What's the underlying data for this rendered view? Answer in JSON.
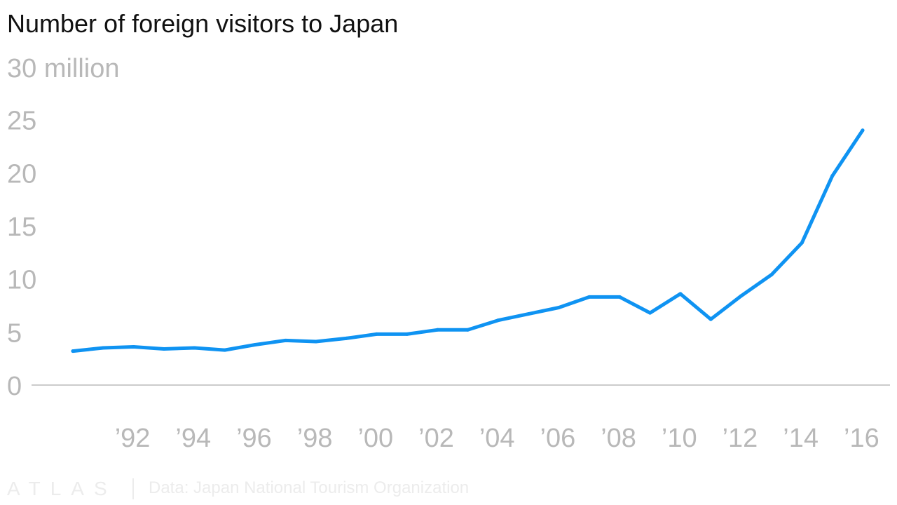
{
  "chart_data": {
    "type": "line",
    "title": "Number of foreign visitors to Japan",
    "y_unit_label": "30 million",
    "yticks": [
      0,
      5,
      10,
      15,
      20,
      25
    ],
    "ylim": [
      0,
      30
    ],
    "xlim": [
      1990,
      2016
    ],
    "xticks": [
      {
        "value": 1992,
        "label": "’92"
      },
      {
        "value": 1994,
        "label": "’94"
      },
      {
        "value": 1996,
        "label": "’96"
      },
      {
        "value": 1998,
        "label": "’98"
      },
      {
        "value": 2000,
        "label": "’00"
      },
      {
        "value": 2002,
        "label": "’02"
      },
      {
        "value": 2004,
        "label": "’04"
      },
      {
        "value": 2006,
        "label": "’06"
      },
      {
        "value": 2008,
        "label": "’08"
      },
      {
        "value": 2010,
        "label": "’10"
      },
      {
        "value": 2012,
        "label": "’12"
      },
      {
        "value": 2014,
        "label": "’14"
      },
      {
        "value": 2016,
        "label": "’16"
      }
    ],
    "series": [
      {
        "color": "#0f93f2",
        "x": [
          1990,
          1991,
          1992,
          1993,
          1994,
          1995,
          1996,
          1997,
          1998,
          1999,
          2000,
          2001,
          2002,
          2003,
          2004,
          2005,
          2006,
          2007,
          2008,
          2009,
          2010,
          2011,
          2012,
          2013,
          2014,
          2015,
          2016
        ],
        "values": [
          3.2,
          3.5,
          3.6,
          3.4,
          3.5,
          3.3,
          3.8,
          4.2,
          4.1,
          4.4,
          4.8,
          4.8,
          5.2,
          5.2,
          6.1,
          6.7,
          7.3,
          8.3,
          8.3,
          6.8,
          8.6,
          6.2,
          8.4,
          10.4,
          13.4,
          19.7,
          24.0
        ]
      }
    ],
    "grid": false,
    "baseline_color": "#cccccc"
  },
  "footer": {
    "brand": "ATLAS",
    "source": "Data: Japan National Tourism Organization"
  }
}
